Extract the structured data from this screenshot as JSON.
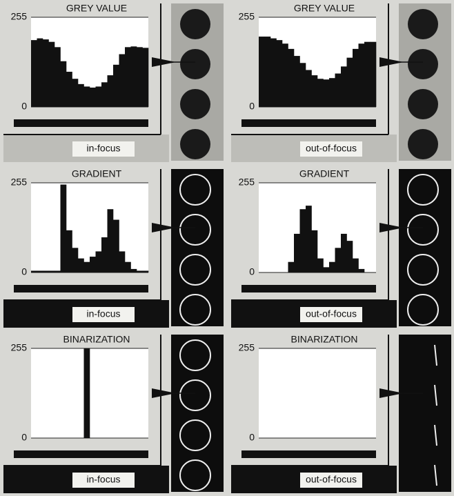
{
  "chart_data": [
    {
      "type": "bar",
      "title": "GREY VALUE",
      "annotation": "in-focus",
      "color": "#111111",
      "categories": [
        null,
        null,
        null,
        null,
        null,
        null,
        null,
        null,
        null,
        null,
        null,
        null,
        null,
        null,
        null,
        null,
        null,
        null,
        null,
        null
      ],
      "values": [
        190,
        195,
        192,
        185,
        170,
        130,
        100,
        80,
        65,
        58,
        55,
        58,
        70,
        90,
        120,
        150,
        170,
        172,
        170,
        168
      ],
      "ylim": [
        0,
        255
      ],
      "yticks": [
        0,
        255
      ]
    },
    {
      "type": "bar",
      "title": "GREY VALUE",
      "annotation": "out-of-focus",
      "color": "#111111",
      "categories": [
        null,
        null,
        null,
        null,
        null,
        null,
        null,
        null,
        null,
        null,
        null,
        null,
        null,
        null,
        null,
        null,
        null,
        null,
        null,
        null
      ],
      "values": [
        200,
        200,
        195,
        190,
        180,
        165,
        145,
        125,
        105,
        90,
        80,
        78,
        82,
        95,
        115,
        140,
        165,
        180,
        185,
        185
      ],
      "ylim": [
        0,
        255
      ],
      "yticks": [
        0,
        255
      ]
    },
    {
      "type": "bar",
      "title": "GRADIENT",
      "annotation": "in-focus",
      "color": "#111111",
      "categories": [
        null,
        null,
        null,
        null,
        null,
        null,
        null,
        null,
        null,
        null,
        null,
        null,
        null,
        null,
        null,
        null,
        null,
        null,
        null,
        null
      ],
      "values": [
        5,
        5,
        5,
        5,
        5,
        250,
        120,
        70,
        40,
        30,
        45,
        60,
        100,
        180,
        150,
        60,
        30,
        10,
        5,
        5
      ],
      "ylim": [
        0,
        255
      ],
      "yticks": [
        0,
        255
      ]
    },
    {
      "type": "bar",
      "title": "GRADIENT",
      "annotation": "out-of-focus",
      "color": "#111111",
      "categories": [
        null,
        null,
        null,
        null,
        null,
        null,
        null,
        null,
        null,
        null,
        null,
        null,
        null,
        null,
        null,
        null,
        null,
        null,
        null,
        null
      ],
      "values": [
        0,
        0,
        0,
        0,
        0,
        30,
        110,
        180,
        190,
        120,
        40,
        15,
        30,
        70,
        110,
        90,
        40,
        10,
        0,
        0
      ],
      "ylim": [
        0,
        255
      ],
      "yticks": [
        0,
        255
      ]
    },
    {
      "type": "bar",
      "title": "BINARIZATION",
      "annotation": "in-focus",
      "color": "#111111",
      "categories": [
        null,
        null,
        null,
        null,
        null,
        null,
        null,
        null,
        null,
        null,
        null,
        null,
        null,
        null,
        null,
        null,
        null,
        null,
        null,
        null
      ],
      "values": [
        0,
        0,
        0,
        0,
        0,
        0,
        0,
        0,
        0,
        255,
        0,
        0,
        0,
        0,
        0,
        0,
        0,
        0,
        0,
        0
      ],
      "ylim": [
        0,
        255
      ],
      "yticks": [
        0,
        255
      ]
    },
    {
      "type": "bar",
      "title": "BINARIZATION",
      "annotation": "out-of-focus",
      "color": "#111111",
      "categories": [
        null,
        null,
        null,
        null,
        null,
        null,
        null,
        null,
        null,
        null,
        null,
        null,
        null,
        null,
        null,
        null,
        null,
        null,
        null,
        null
      ],
      "values": [
        0,
        0,
        0,
        0,
        0,
        0,
        0,
        0,
        0,
        0,
        0,
        0,
        0,
        0,
        0,
        0,
        0,
        0,
        0,
        0
      ],
      "ylim": [
        0,
        255
      ],
      "yticks": [
        0,
        255
      ]
    }
  ]
}
